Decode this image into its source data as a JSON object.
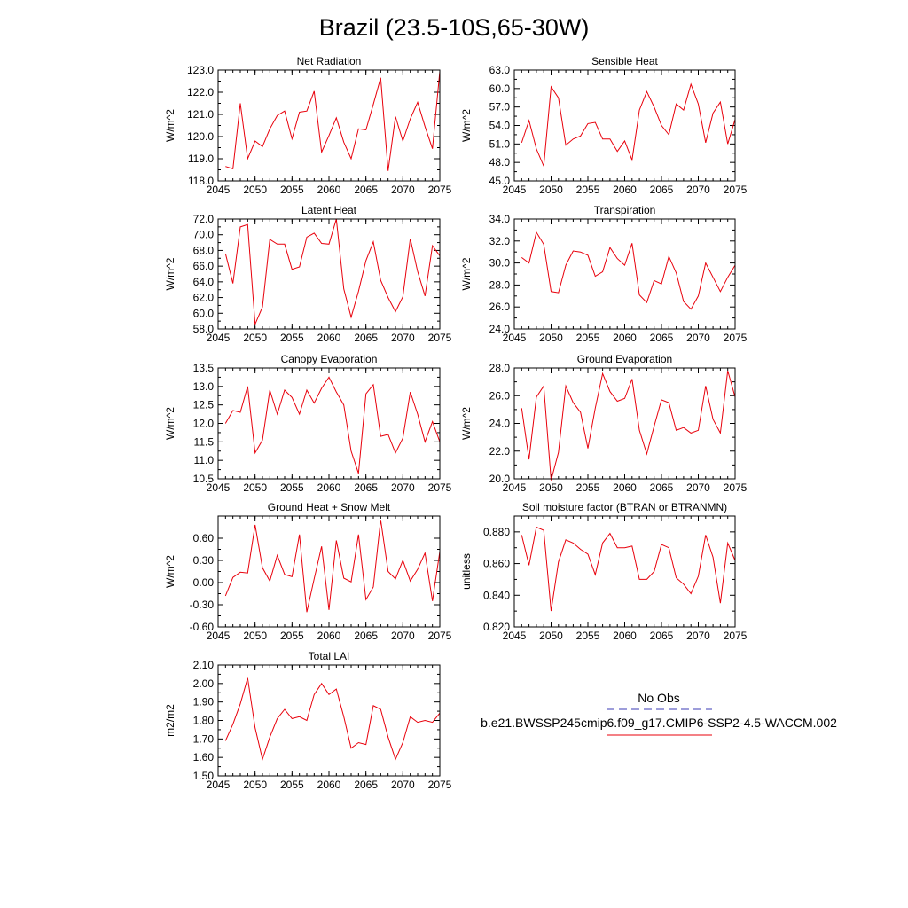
{
  "title": "Brazil (23.5-10S,65-30W)",
  "line_color": "#e8000b",
  "obs_color": "#3b3bb5",
  "legend": {
    "obs_label": "No Obs",
    "model_label": "b.e21.BWSSP245cmip6.f09_g17.CMIP6-SSP2-4.5-WACCM.002"
  },
  "chart_data": [
    {
      "type": "line",
      "title": "Net Radiation",
      "ylabel": "W/m^2",
      "xlim": [
        2045,
        2075
      ],
      "ylim": [
        118,
        123
      ],
      "x_ticks": [
        "2045",
        "2050",
        "2055",
        "2060",
        "2065",
        "2070",
        "2075"
      ],
      "y_ticks": [
        "118.0",
        "119.0",
        "120.0",
        "121.0",
        "122.0",
        "123.0"
      ],
      "series": [
        {
          "x_start": 2046,
          "values": [
            118.65,
            118.55,
            121.5,
            119.0,
            119.8,
            119.55,
            120.35,
            120.95,
            121.15,
            119.9,
            121.1,
            121.15,
            122.05,
            119.3,
            120.05,
            120.85,
            119.75,
            119.0,
            120.35,
            120.3,
            121.45,
            122.65,
            118.45,
            120.9,
            119.8,
            120.8,
            121.55,
            120.45,
            119.45,
            122.95
          ]
        }
      ]
    },
    {
      "type": "line",
      "title": "Sensible Heat",
      "ylabel": "W/m^2",
      "xlim": [
        2045,
        2075
      ],
      "ylim": [
        45,
        63
      ],
      "x_ticks": [
        "2045",
        "2050",
        "2055",
        "2060",
        "2065",
        "2070",
        "2075"
      ],
      "y_ticks": [
        "45.0",
        "48.0",
        "51.0",
        "54.0",
        "57.0",
        "60.0",
        "63.0"
      ],
      "series": [
        {
          "x_start": 2046,
          "values": [
            51.2,
            54.8,
            50.2,
            47.4,
            60.3,
            58.5,
            50.8,
            51.8,
            52.3,
            54.3,
            54.5,
            51.8,
            51.8,
            49.8,
            51.5,
            48.4,
            56.5,
            59.5,
            57.0,
            54.0,
            52.5,
            57.5,
            56.5,
            60.7,
            57.5,
            51.2,
            56.0,
            57.8,
            51.0,
            55.0
          ]
        }
      ]
    },
    {
      "type": "line",
      "title": "Latent Heat",
      "ylabel": "W/m^2",
      "xlim": [
        2045,
        2075
      ],
      "ylim": [
        58,
        72
      ],
      "x_ticks": [
        "2045",
        "2050",
        "2055",
        "2060",
        "2065",
        "2070",
        "2075"
      ],
      "y_ticks": [
        "58.0",
        "60.0",
        "62.0",
        "64.0",
        "66.0",
        "68.0",
        "70.0",
        "72.0"
      ],
      "series": [
        {
          "x_start": 2046,
          "values": [
            67.6,
            63.8,
            71.0,
            71.3,
            58.6,
            60.8,
            69.4,
            68.8,
            68.8,
            65.6,
            65.9,
            69.7,
            70.2,
            68.9,
            68.8,
            72.0,
            63.1,
            59.5,
            62.8,
            66.7,
            69.1,
            64.2,
            62.0,
            60.2,
            62.1,
            69.5,
            65.3,
            62.2,
            68.6,
            67.3
          ]
        }
      ]
    },
    {
      "type": "line",
      "title": "Transpiration",
      "ylabel": "W/m^2",
      "xlim": [
        2045,
        2075
      ],
      "ylim": [
        24,
        34
      ],
      "x_ticks": [
        "2045",
        "2050",
        "2055",
        "2060",
        "2065",
        "2070",
        "2075"
      ],
      "y_ticks": [
        "24.0",
        "26.0",
        "28.0",
        "30.0",
        "32.0",
        "34.0"
      ],
      "series": [
        {
          "x_start": 2046,
          "values": [
            30.5,
            30.0,
            32.8,
            31.7,
            27.4,
            27.3,
            29.8,
            31.1,
            31.0,
            30.7,
            28.8,
            29.2,
            31.4,
            30.4,
            29.8,
            31.8,
            27.1,
            26.4,
            28.4,
            28.1,
            30.6,
            29.1,
            26.5,
            25.8,
            27.0,
            30.0,
            28.7,
            27.4,
            28.7,
            29.8
          ]
        }
      ]
    },
    {
      "type": "line",
      "title": "Canopy Evaporation",
      "ylabel": "W/m^2",
      "xlim": [
        2045,
        2075
      ],
      "ylim": [
        10.5,
        13.5
      ],
      "x_ticks": [
        "2045",
        "2050",
        "2055",
        "2060",
        "2065",
        "2070",
        "2075"
      ],
      "y_ticks": [
        "10.5",
        "11.0",
        "11.5",
        "12.0",
        "12.5",
        "13.0",
        "13.5"
      ],
      "series": [
        {
          "x_start": 2046,
          "values": [
            12.0,
            12.35,
            12.3,
            13.0,
            11.2,
            11.55,
            12.9,
            12.25,
            12.9,
            12.7,
            12.25,
            12.9,
            12.55,
            12.95,
            13.25,
            12.85,
            12.5,
            11.25,
            10.65,
            12.8,
            13.05,
            11.65,
            11.7,
            11.2,
            11.6,
            12.85,
            12.25,
            11.5,
            12.05,
            11.5
          ]
        }
      ]
    },
    {
      "type": "line",
      "title": "Ground Evaporation",
      "ylabel": "W/m^2",
      "xlim": [
        2045,
        2075
      ],
      "ylim": [
        20,
        28
      ],
      "x_ticks": [
        "2045",
        "2050",
        "2055",
        "2060",
        "2065",
        "2070",
        "2075"
      ],
      "y_ticks": [
        "20.0",
        "22.0",
        "24.0",
        "26.0",
        "28.0"
      ],
      "series": [
        {
          "x_start": 2046,
          "values": [
            25.1,
            21.4,
            25.9,
            26.7,
            19.9,
            21.9,
            26.7,
            25.5,
            24.8,
            22.2,
            25.1,
            27.6,
            26.3,
            25.6,
            25.8,
            27.2,
            23.5,
            21.8,
            23.8,
            25.7,
            25.5,
            23.5,
            23.7,
            23.3,
            23.5,
            26.7,
            24.3,
            23.3,
            27.8,
            25.9
          ]
        }
      ]
    },
    {
      "type": "line",
      "title": "Ground Heat + Snow Melt",
      "ylabel": "W/m^2",
      "xlim": [
        2045,
        2075
      ],
      "ylim": [
        -0.6,
        0.9
      ],
      "x_ticks": [
        "2045",
        "2050",
        "2055",
        "2060",
        "2065",
        "2070",
        "2075"
      ],
      "y_ticks": [
        "-0.60",
        "-0.30",
        "0.00",
        "0.30",
        "0.60"
      ],
      "series": [
        {
          "x_start": 2046,
          "values": [
            -0.18,
            0.07,
            0.14,
            0.13,
            0.78,
            0.2,
            0.02,
            0.37,
            0.11,
            0.08,
            0.65,
            -0.4,
            0.05,
            0.49,
            -0.37,
            0.57,
            0.06,
            0.01,
            0.65,
            -0.23,
            -0.06,
            0.85,
            0.15,
            0.05,
            0.3,
            0.02,
            0.18,
            0.4,
            -0.25,
            0.42
          ]
        }
      ]
    },
    {
      "type": "line",
      "title": "Soil moisture factor (BTRAN or BTRANMN)",
      "ylabel": "unitless",
      "xlim": [
        2045,
        2075
      ],
      "ylim": [
        0.82,
        0.89
      ],
      "x_ticks": [
        "2045",
        "2050",
        "2055",
        "2060",
        "2065",
        "2070",
        "2075"
      ],
      "y_ticks": [
        "0.820",
        "0.840",
        "0.860",
        "0.880"
      ],
      "series": [
        {
          "x_start": 2046,
          "values": [
            0.878,
            0.859,
            0.883,
            0.881,
            0.83,
            0.861,
            0.875,
            0.873,
            0.869,
            0.866,
            0.853,
            0.873,
            0.879,
            0.87,
            0.87,
            0.871,
            0.85,
            0.85,
            0.855,
            0.872,
            0.87,
            0.851,
            0.847,
            0.841,
            0.852,
            0.878,
            0.864,
            0.835,
            0.873,
            0.862
          ]
        }
      ]
    },
    {
      "type": "line",
      "title": "Total LAI",
      "ylabel": "m2/m2",
      "xlim": [
        2045,
        2075
      ],
      "ylim": [
        1.5,
        2.1
      ],
      "x_ticks": [
        "2045",
        "2050",
        "2055",
        "2060",
        "2065",
        "2070",
        "2075"
      ],
      "y_ticks": [
        "1.50",
        "1.60",
        "1.70",
        "1.80",
        "1.90",
        "2.00",
        "2.10"
      ],
      "series": [
        {
          "x_start": 2046,
          "values": [
            1.69,
            1.78,
            1.89,
            2.03,
            1.76,
            1.59,
            1.71,
            1.81,
            1.86,
            1.81,
            1.82,
            1.8,
            1.94,
            2.0,
            1.94,
            1.97,
            1.82,
            1.65,
            1.68,
            1.67,
            1.88,
            1.86,
            1.71,
            1.59,
            1.68,
            1.82,
            1.79,
            1.8,
            1.79,
            1.84
          ]
        }
      ]
    }
  ]
}
